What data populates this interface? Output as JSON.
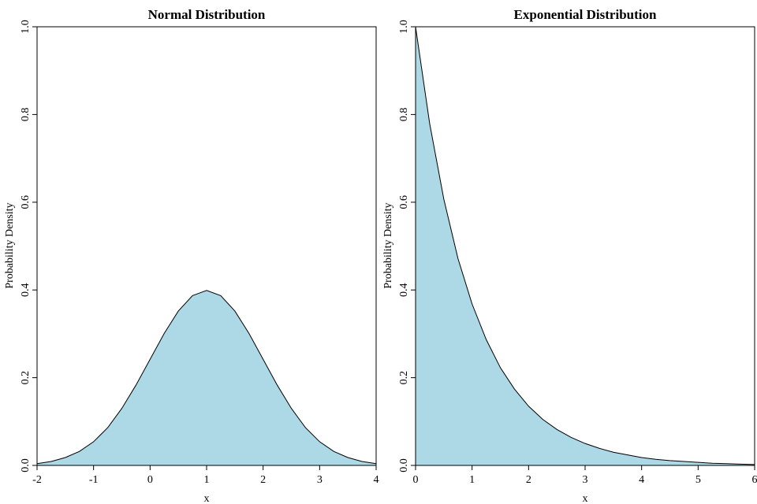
{
  "figure": {
    "fill_color": "#add8e6",
    "line_color": "#000000"
  },
  "chart_data": [
    {
      "type": "area",
      "title": "Normal Distribution",
      "xlabel": "x",
      "ylabel": "Probability Density",
      "xlim": [
        -2,
        4
      ],
      "ylim": [
        0,
        1.0
      ],
      "xticks": [
        -2,
        -1,
        0,
        1,
        2,
        3,
        4
      ],
      "xtick_labels": [
        "-2",
        "-1",
        "0",
        "1",
        "2",
        "3",
        "4"
      ],
      "yticks": [
        0,
        0.2,
        0.4,
        0.6,
        0.8,
        1.0
      ],
      "ytick_labels": [
        "0.0",
        "0.2",
        "0.4",
        "0.6",
        "0.8",
        "1.0"
      ],
      "grid": false,
      "series": [
        {
          "x": [
            -2,
            -1.75,
            -1.5,
            -1.25,
            -1,
            -0.75,
            -0.5,
            -0.25,
            0,
            0.25,
            0.5,
            0.75,
            1,
            1.25,
            1.5,
            1.75,
            2,
            2.25,
            2.5,
            2.75,
            3,
            3.25,
            3.5,
            3.75,
            4
          ],
          "y": [
            0.004,
            0.009,
            0.018,
            0.032,
            0.054,
            0.086,
            0.13,
            0.183,
            0.242,
            0.301,
            0.352,
            0.387,
            0.399,
            0.387,
            0.352,
            0.301,
            0.242,
            0.183,
            0.13,
            0.086,
            0.054,
            0.032,
            0.018,
            0.009,
            0.004
          ]
        }
      ]
    },
    {
      "type": "area",
      "title": "Exponential Distribution",
      "xlabel": "x",
      "ylabel": "Probability Density",
      "xlim": [
        0,
        6
      ],
      "ylim": [
        0,
        1.0
      ],
      "xticks": [
        0,
        1,
        2,
        3,
        4,
        5,
        6
      ],
      "xtick_labels": [
        "0",
        "1",
        "2",
        "3",
        "4",
        "5",
        "6"
      ],
      "yticks": [
        0,
        0.2,
        0.4,
        0.6,
        0.8,
        1.0
      ],
      "ytick_labels": [
        "0.0",
        "0.2",
        "0.4",
        "0.6",
        "0.8",
        "1.0"
      ],
      "grid": false,
      "series": [
        {
          "x": [
            0,
            0.25,
            0.5,
            0.75,
            1,
            1.25,
            1.5,
            1.75,
            2,
            2.25,
            2.5,
            2.75,
            3,
            3.25,
            3.5,
            3.75,
            4,
            4.25,
            4.5,
            4.75,
            5,
            5.25,
            5.5,
            5.75,
            6
          ],
          "y": [
            1.0,
            0.779,
            0.607,
            0.472,
            0.368,
            0.287,
            0.223,
            0.174,
            0.135,
            0.105,
            0.082,
            0.064,
            0.05,
            0.039,
            0.03,
            0.024,
            0.018,
            0.014,
            0.011,
            0.009,
            0.007,
            0.005,
            0.004,
            0.003,
            0.002
          ]
        }
      ]
    }
  ]
}
